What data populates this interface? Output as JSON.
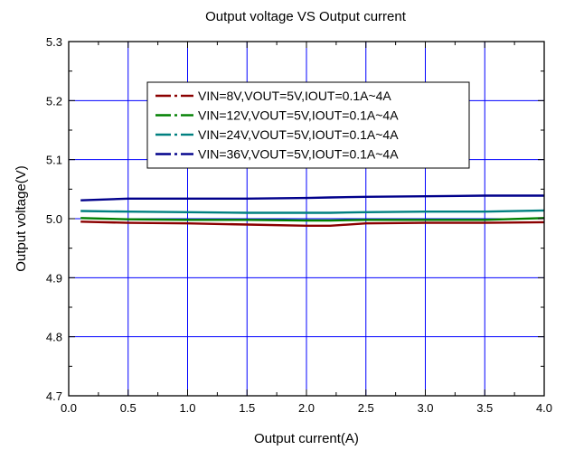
{
  "chart_data": {
    "type": "line",
    "title": "Output voltage VS Output current",
    "xlabel": "Output current(A)",
    "ylabel": "Output voltage(V)",
    "xlim": [
      0.0,
      4.0
    ],
    "ylim": [
      4.7,
      5.3
    ],
    "xticks": [
      "0.0",
      "0.5",
      "1.0",
      "1.5",
      "2.0",
      "2.5",
      "3.0",
      "3.5",
      "4.0"
    ],
    "yticks": [
      "4.7",
      "4.8",
      "4.9",
      "5.0",
      "5.1",
      "5.2",
      "5.3"
    ],
    "grid": true,
    "legend_position": "top-left",
    "x": [
      0.1,
      0.5,
      1.0,
      1.5,
      2.0,
      2.2,
      2.5,
      3.0,
      3.5,
      4.0
    ],
    "series": [
      {
        "name": "VIN=8V,VOUT=5V,IOUT=0.1A~4A",
        "color": "#8b0000",
        "dash": "long-dash-dot",
        "values": [
          4.995,
          4.993,
          4.992,
          4.99,
          4.988,
          4.988,
          4.992,
          4.993,
          4.993,
          4.994
        ]
      },
      {
        "name": "VIN=12V,VOUT=5V,IOUT=0.1A~4A",
        "color": "#008000",
        "dash": "long-dash-dot",
        "values": [
          5.001,
          4.999,
          4.998,
          4.998,
          4.997,
          4.997,
          4.998,
          4.998,
          4.998,
          5.001
        ]
      },
      {
        "name": "VIN=24V,VOUT=5V,IOUT=0.1A~4A",
        "color": "#008080",
        "dash": "long-dash-dot",
        "values": [
          5.013,
          5.012,
          5.011,
          5.01,
          5.01,
          5.01,
          5.011,
          5.012,
          5.012,
          5.014
        ]
      },
      {
        "name": "VIN=36V,VOUT=5V,IOUT=0.1A~4A",
        "color": "#00008b",
        "dash": "long-dash-dot",
        "values": [
          5.031,
          5.034,
          5.034,
          5.034,
          5.035,
          5.036,
          5.037,
          5.038,
          5.039,
          5.039
        ]
      }
    ]
  }
}
